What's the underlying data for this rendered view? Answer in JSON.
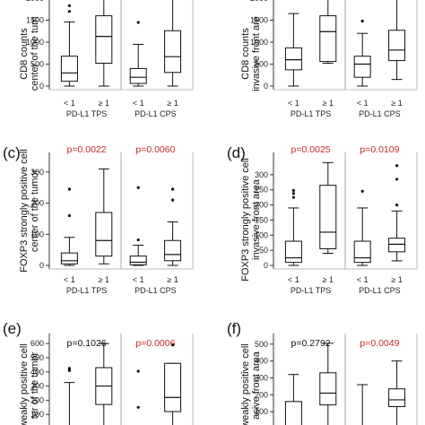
{
  "colors": {
    "significant": "#c62828",
    "nonsignificant": "#111111",
    "box": "#111111",
    "divider": "#aaaaaa"
  },
  "chart_data": [
    {
      "type": "box",
      "panel_label": "",
      "ylabel": [
        "CD8 counts",
        "center of the tum"
      ],
      "ylim": [
        0,
        2000
      ],
      "yticks": [
        0,
        500,
        1000,
        1500,
        2000
      ],
      "groups": [
        "PD-L1 TPS",
        "PD-L1 CPS"
      ],
      "categories": [
        "< 1",
        "≥ 1",
        "< 1",
        "≥ 1"
      ],
      "pvalues": [],
      "boxes": [
        {
          "whisker_low": 0,
          "q1": 110,
          "median": 300,
          "q3": 680,
          "whisker_high": 1460,
          "outliers": [
            1700,
            1830
          ]
        },
        {
          "whisker_low": 0,
          "q1": 520,
          "median": 1130,
          "q3": 1600,
          "whisker_high": 2000,
          "outliers": []
        },
        {
          "whisker_low": 0,
          "q1": 60,
          "median": 200,
          "q3": 400,
          "whisker_high": 950,
          "outliers": [
            1450
          ]
        },
        {
          "whisker_low": 0,
          "q1": 310,
          "median": 670,
          "q3": 1260,
          "whisker_high": 2000,
          "outliers": []
        }
      ]
    },
    {
      "type": "box",
      "panel_label": "",
      "ylabel": [
        "CD8 counts",
        "invasive front are"
      ],
      "ylim": [
        0,
        2000
      ],
      "yticks": [
        0,
        500,
        1000,
        1500,
        2000
      ],
      "groups": [
        "PD-L1 TPS",
        "PD-L1 CPS"
      ],
      "categories": [
        "< 1",
        "≥ 1",
        "< 1",
        "≥ 1"
      ],
      "pvalues": [],
      "boxes": [
        {
          "whisker_low": 0,
          "q1": 370,
          "median": 600,
          "q3": 870,
          "whisker_high": 1650,
          "outliers": []
        },
        {
          "whisker_low": 520,
          "q1": 560,
          "median": 1240,
          "q3": 1600,
          "whisker_high": 2000,
          "outliers": []
        },
        {
          "whisker_low": 0,
          "q1": 200,
          "median": 500,
          "q3": 680,
          "whisker_high": 1200,
          "outliers": [
            1480
          ]
        },
        {
          "whisker_low": 150,
          "q1": 580,
          "median": 820,
          "q3": 1270,
          "whisker_high": 2000,
          "outliers": []
        }
      ]
    },
    {
      "type": "box",
      "panel_label": "(c)",
      "ylabel": [
        "FOXP3 strongly positive cell",
        "center of the tumor"
      ],
      "ylim": [
        0,
        340
      ],
      "yticks": [
        0,
        100,
        200,
        300
      ],
      "groups": [
        "PD-L1 TPS",
        "PD-L1 CPS"
      ],
      "categories": [
        "< 1",
        "≥ 1",
        "< 1",
        "≥ 1"
      ],
      "pvalues": [
        {
          "text": "p=0.0022",
          "significant": true
        },
        {
          "text": "p=0.0060",
          "significant": true
        }
      ],
      "boxes": [
        {
          "whisker_low": 0,
          "q1": 5,
          "median": 15,
          "q3": 40,
          "whisker_high": 90,
          "outliers": [
            160,
            245
          ]
        },
        {
          "whisker_low": 5,
          "q1": 30,
          "median": 80,
          "q3": 170,
          "whisker_high": 310,
          "outliers": []
        },
        {
          "whisker_low": 0,
          "q1": 2,
          "median": 10,
          "q3": 30,
          "whisker_high": 65,
          "outliers": [
            82,
            250
          ]
        },
        {
          "whisker_low": 0,
          "q1": 15,
          "median": 35,
          "q3": 80,
          "whisker_high": 140,
          "outliers": [
            210,
            245
          ]
        }
      ]
    },
    {
      "type": "box",
      "panel_label": "(d)",
      "ylabel": [
        "FOXP3 strongly positive cell",
        "invasive front area"
      ],
      "ylim": [
        0,
        350
      ],
      "yticks": [
        0,
        50,
        100,
        150,
        200,
        250,
        300
      ],
      "groups": [
        "PD-L1 TPS",
        "PD-L1 CPS"
      ],
      "categories": [
        "< 1",
        "≥ 1",
        "< 1",
        "≥ 1"
      ],
      "pvalues": [
        {
          "text": "p=0.0025",
          "significant": true
        },
        {
          "text": "p=0.0109",
          "significant": true
        }
      ],
      "boxes": [
        {
          "whisker_low": 0,
          "q1": 10,
          "median": 25,
          "q3": 80,
          "whisker_high": 190,
          "outliers": [
            225,
            238,
            248
          ]
        },
        {
          "whisker_low": 40,
          "q1": 55,
          "median": 110,
          "q3": 265,
          "whisker_high": 340,
          "outliers": []
        },
        {
          "whisker_low": 0,
          "q1": 10,
          "median": 25,
          "q3": 80,
          "whisker_high": 190,
          "outliers": [
            245
          ]
        },
        {
          "whisker_low": 15,
          "q1": 45,
          "median": 70,
          "q3": 90,
          "whisker_high": 180,
          "outliers": [
            200,
            285,
            330
          ]
        }
      ]
    },
    {
      "type": "box",
      "panel_label": "(e)",
      "ylabel": [
        "weakly positive cell",
        "ter of the tumor"
      ],
      "ylim": [
        0,
        620
      ],
      "yticks": [
        0,
        100,
        200,
        300,
        400,
        500,
        600
      ],
      "groups": [
        "PD-L1 TPS",
        "PD-L1 CPS"
      ],
      "categories": [
        "< 1",
        "≥ 1",
        "< 1",
        "≥ 1"
      ],
      "pvalues": [
        {
          "text": "p=0.1026",
          "significant": false
        },
        {
          "text": "p=0.0006",
          "significant": true
        }
      ],
      "boxes": [
        {
          "whisker_low": 0,
          "q1": 0,
          "median": 0,
          "q3": 0,
          "whisker_high": 325,
          "outliers": [
            410,
            425
          ]
        },
        {
          "whisker_low": 0,
          "q1": 170,
          "median": 300,
          "q3": 430,
          "whisker_high": 600,
          "outliers": []
        },
        {
          "whisker_low": 0,
          "q1": 0,
          "median": 0,
          "q3": 0,
          "whisker_high": 0,
          "outliers": [
            150,
            405
          ]
        },
        {
          "whisker_low": 0,
          "q1": 120,
          "median": 220,
          "q3": 460,
          "whisker_high": 460,
          "outliers": [
            590
          ]
        }
      ]
    },
    {
      "type": "box",
      "panel_label": "(f)",
      "ylabel": [
        "weakly positive cell",
        "asive front area"
      ],
      "ylim": [
        0,
        520
      ],
      "yticks": [
        100,
        200,
        300,
        400,
        500
      ],
      "groups": [
        "PD-L1 TPS",
        "PD-L1 CPS"
      ],
      "categories": [
        "< 1",
        "≥ 1",
        "< 1",
        "≥ 1"
      ],
      "pvalues": [
        {
          "text": "p=0.2792",
          "significant": false
        },
        {
          "text": "p=0.0049",
          "significant": true
        }
      ],
      "boxes": [
        {
          "whisker_low": 0,
          "q1": 0,
          "median": 0,
          "q3": 160,
          "whisker_high": 320,
          "outliers": []
        },
        {
          "whisker_low": 0,
          "q1": 140,
          "median": 210,
          "q3": 330,
          "whisker_high": 505,
          "outliers": []
        },
        {
          "whisker_low": 0,
          "q1": 0,
          "median": 0,
          "q3": 0,
          "whisker_high": 260,
          "outliers": []
        },
        {
          "whisker_low": 0,
          "q1": 130,
          "median": 170,
          "q3": 235,
          "whisker_high": 400,
          "outliers": []
        }
      ]
    }
  ]
}
